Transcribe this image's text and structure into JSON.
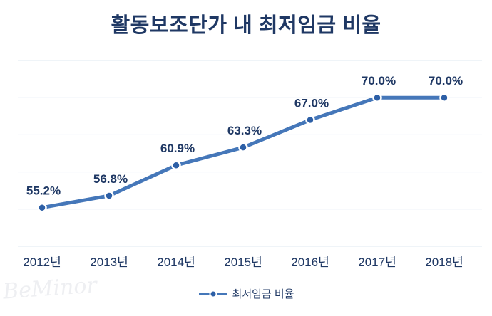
{
  "title": "활동보조단가 내 최저임금 비율",
  "watermark": "BeMinor",
  "legend": {
    "label": "최저임금 비율",
    "marker": "line-dot"
  },
  "colors": {
    "title_text": "#1f3864",
    "label_text": "#1f3864",
    "line": "#4577b9",
    "marker_fill": "#2d5fa6",
    "marker_ring": "#ffffff",
    "gridline": "#dfe8f2",
    "background": "#ffffff",
    "bottom_rule": "#e3eaf2"
  },
  "chart_data": {
    "type": "line",
    "title": "활동보조단가 내 최저임금 비율",
    "categories": [
      "2012년",
      "2013년",
      "2014년",
      "2015년",
      "2016년",
      "2017년",
      "2018년"
    ],
    "series": [
      {
        "name": "최저임금 비율",
        "values": [
          55.2,
          56.8,
          60.9,
          63.3,
          67.0,
          70.0,
          70.0
        ]
      }
    ],
    "data_labels": [
      "55.2%",
      "56.8%",
      "60.9%",
      "63.3%",
      "67.0%",
      "70.0%",
      "70.0%"
    ],
    "xlabel": "",
    "ylabel": "",
    "ylim": [
      50,
      75
    ],
    "gridline_step": 5,
    "grid": true,
    "y_tick_labels_visible": false,
    "legend_position": "bottom"
  }
}
